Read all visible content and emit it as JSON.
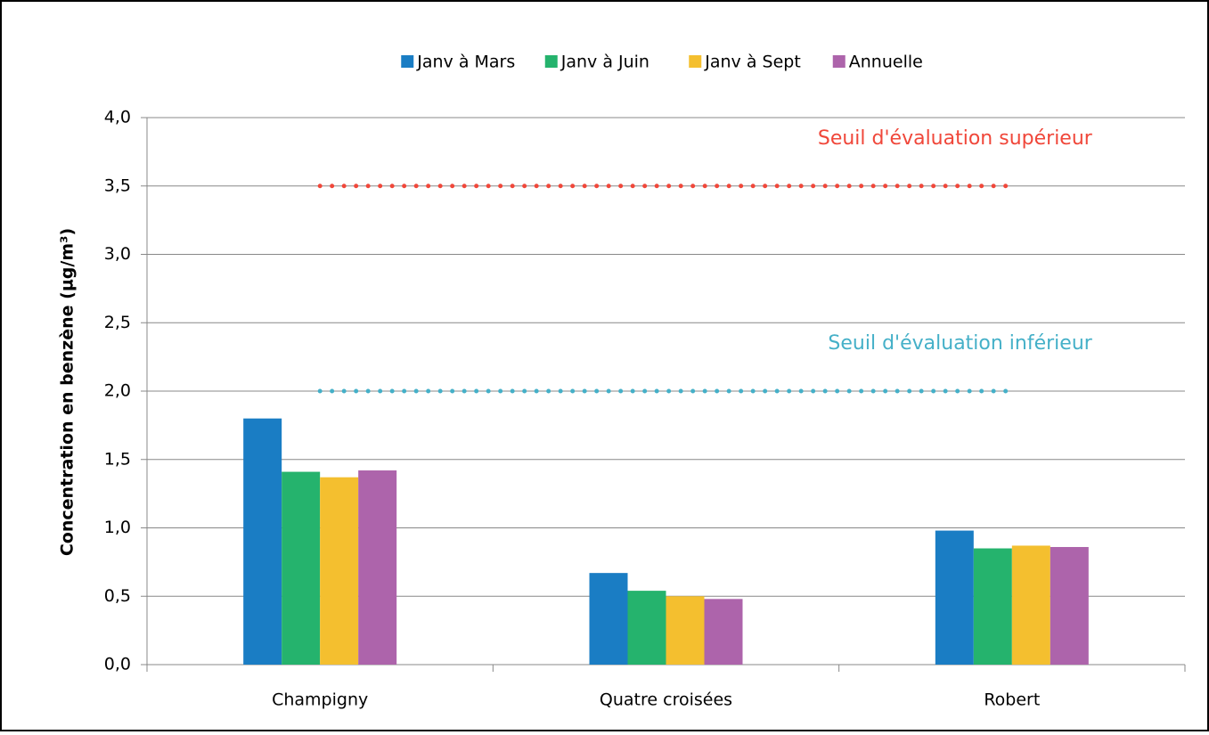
{
  "chart_data": {
    "type": "bar",
    "y_label": "Concentration en benzène (µg/m³)",
    "categories": [
      "Champigny",
      "Quatre croisées",
      "Robert"
    ],
    "series": [
      {
        "name": "Janv à Mars",
        "color": "#1a7dc4",
        "values": [
          1.8,
          0.67,
          0.98
        ]
      },
      {
        "name": "Janv à Juin",
        "color": "#25b36d",
        "values": [
          1.41,
          0.54,
          0.85
        ]
      },
      {
        "name": "Janv à Sept",
        "color": "#f4bf2f",
        "values": [
          1.37,
          0.5,
          0.87
        ]
      },
      {
        "name": "Annuelle",
        "color": "#ad64ab",
        "values": [
          1.42,
          0.48,
          0.86
        ]
      }
    ],
    "thresholds": [
      {
        "label": "Seuil d'évaluation supérieur",
        "value": 3.5,
        "color": "#f0473a"
      },
      {
        "label": "Seuil d'évaluation inférieur",
        "value": 2.0,
        "color": "#45b0c8"
      }
    ],
    "ylim": [
      0,
      4
    ],
    "yticks": [
      {
        "value": 0,
        "label": "0,0"
      },
      {
        "value": 0.5,
        "label": "0,5"
      },
      {
        "value": 1,
        "label": "1,0"
      },
      {
        "value": 1.5,
        "label": "1,5"
      },
      {
        "value": 2,
        "label": "2,0"
      },
      {
        "value": 2.5,
        "label": "2,5"
      },
      {
        "value": 3,
        "label": "3,0"
      },
      {
        "value": 3.5,
        "label": "3,5"
      },
      {
        "value": 4,
        "label": "4,0"
      }
    ],
    "grid": true,
    "legend": "top"
  }
}
